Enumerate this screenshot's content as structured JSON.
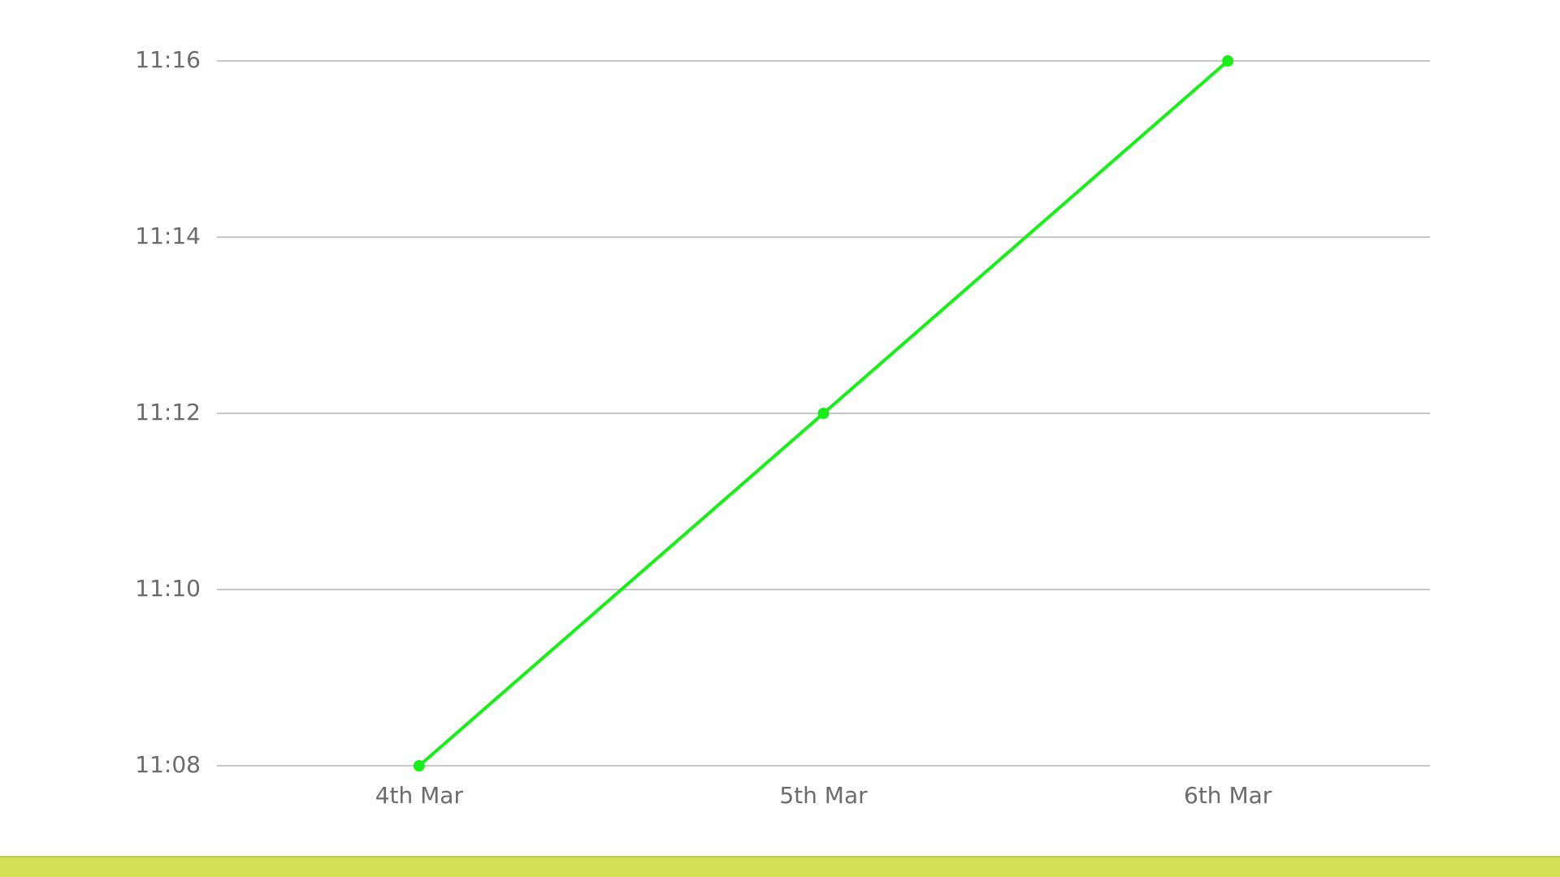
{
  "chart_data": {
    "type": "line",
    "categories": [
      "4th Mar",
      "5th Mar",
      "6th Mar"
    ],
    "series": [
      {
        "color": "#1aee1a",
        "values": [
          668,
          672,
          676
        ]
      }
    ],
    "ylim": [
      668,
      676
    ],
    "yticks": [
      {
        "value": 668,
        "label": "11:08"
      },
      {
        "value": 670,
        "label": "11:10"
      },
      {
        "value": 672,
        "label": "11:12"
      },
      {
        "value": 674,
        "label": "11:14"
      },
      {
        "value": 676,
        "label": "11:16"
      }
    ],
    "grid": true
  }
}
